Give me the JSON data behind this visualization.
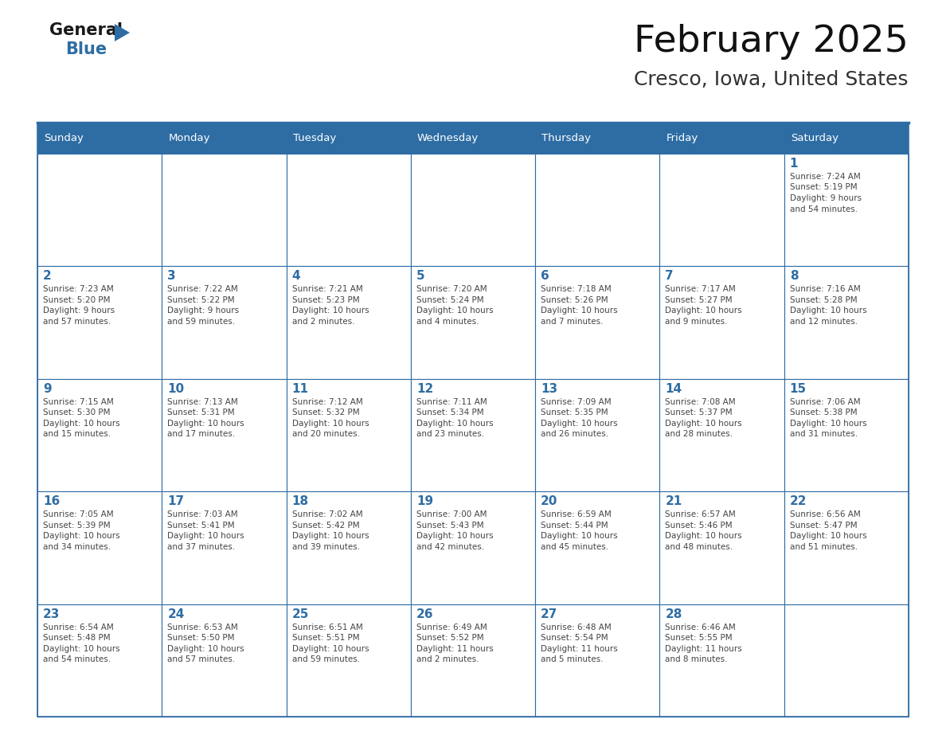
{
  "title": "February 2025",
  "subtitle": "Cresco, Iowa, United States",
  "header_bg": "#2E6DA4",
  "header_text": "#FFFFFF",
  "cell_bg": "#FFFFFF",
  "border_color": "#2E6DA4",
  "day_number_color": "#2E6DA4",
  "info_text_color": "#444444",
  "days_of_week": [
    "Sunday",
    "Monday",
    "Tuesday",
    "Wednesday",
    "Thursday",
    "Friday",
    "Saturday"
  ],
  "calendar": [
    [
      null,
      null,
      null,
      null,
      null,
      null,
      {
        "day": "1",
        "sunrise": "7:24 AM",
        "sunset": "5:19 PM",
        "daylight1": "9 hours",
        "daylight2": "and 54 minutes."
      }
    ],
    [
      {
        "day": "2",
        "sunrise": "7:23 AM",
        "sunset": "5:20 PM",
        "daylight1": "9 hours",
        "daylight2": "and 57 minutes."
      },
      {
        "day": "3",
        "sunrise": "7:22 AM",
        "sunset": "5:22 PM",
        "daylight1": "9 hours",
        "daylight2": "and 59 minutes."
      },
      {
        "day": "4",
        "sunrise": "7:21 AM",
        "sunset": "5:23 PM",
        "daylight1": "10 hours",
        "daylight2": "and 2 minutes."
      },
      {
        "day": "5",
        "sunrise": "7:20 AM",
        "sunset": "5:24 PM",
        "daylight1": "10 hours",
        "daylight2": "and 4 minutes."
      },
      {
        "day": "6",
        "sunrise": "7:18 AM",
        "sunset": "5:26 PM",
        "daylight1": "10 hours",
        "daylight2": "and 7 minutes."
      },
      {
        "day": "7",
        "sunrise": "7:17 AM",
        "sunset": "5:27 PM",
        "daylight1": "10 hours",
        "daylight2": "and 9 minutes."
      },
      {
        "day": "8",
        "sunrise": "7:16 AM",
        "sunset": "5:28 PM",
        "daylight1": "10 hours",
        "daylight2": "and 12 minutes."
      }
    ],
    [
      {
        "day": "9",
        "sunrise": "7:15 AM",
        "sunset": "5:30 PM",
        "daylight1": "10 hours",
        "daylight2": "and 15 minutes."
      },
      {
        "day": "10",
        "sunrise": "7:13 AM",
        "sunset": "5:31 PM",
        "daylight1": "10 hours",
        "daylight2": "and 17 minutes."
      },
      {
        "day": "11",
        "sunrise": "7:12 AM",
        "sunset": "5:32 PM",
        "daylight1": "10 hours",
        "daylight2": "and 20 minutes."
      },
      {
        "day": "12",
        "sunrise": "7:11 AM",
        "sunset": "5:34 PM",
        "daylight1": "10 hours",
        "daylight2": "and 23 minutes."
      },
      {
        "day": "13",
        "sunrise": "7:09 AM",
        "sunset": "5:35 PM",
        "daylight1": "10 hours",
        "daylight2": "and 26 minutes."
      },
      {
        "day": "14",
        "sunrise": "7:08 AM",
        "sunset": "5:37 PM",
        "daylight1": "10 hours",
        "daylight2": "and 28 minutes."
      },
      {
        "day": "15",
        "sunrise": "7:06 AM",
        "sunset": "5:38 PM",
        "daylight1": "10 hours",
        "daylight2": "and 31 minutes."
      }
    ],
    [
      {
        "day": "16",
        "sunrise": "7:05 AM",
        "sunset": "5:39 PM",
        "daylight1": "10 hours",
        "daylight2": "and 34 minutes."
      },
      {
        "day": "17",
        "sunrise": "7:03 AM",
        "sunset": "5:41 PM",
        "daylight1": "10 hours",
        "daylight2": "and 37 minutes."
      },
      {
        "day": "18",
        "sunrise": "7:02 AM",
        "sunset": "5:42 PM",
        "daylight1": "10 hours",
        "daylight2": "and 39 minutes."
      },
      {
        "day": "19",
        "sunrise": "7:00 AM",
        "sunset": "5:43 PM",
        "daylight1": "10 hours",
        "daylight2": "and 42 minutes."
      },
      {
        "day": "20",
        "sunrise": "6:59 AM",
        "sunset": "5:44 PM",
        "daylight1": "10 hours",
        "daylight2": "and 45 minutes."
      },
      {
        "day": "21",
        "sunrise": "6:57 AM",
        "sunset": "5:46 PM",
        "daylight1": "10 hours",
        "daylight2": "and 48 minutes."
      },
      {
        "day": "22",
        "sunrise": "6:56 AM",
        "sunset": "5:47 PM",
        "daylight1": "10 hours",
        "daylight2": "and 51 minutes."
      }
    ],
    [
      {
        "day": "23",
        "sunrise": "6:54 AM",
        "sunset": "5:48 PM",
        "daylight1": "10 hours",
        "daylight2": "and 54 minutes."
      },
      {
        "day": "24",
        "sunrise": "6:53 AM",
        "sunset": "5:50 PM",
        "daylight1": "10 hours",
        "daylight2": "and 57 minutes."
      },
      {
        "day": "25",
        "sunrise": "6:51 AM",
        "sunset": "5:51 PM",
        "daylight1": "10 hours",
        "daylight2": "and 59 minutes."
      },
      {
        "day": "26",
        "sunrise": "6:49 AM",
        "sunset": "5:52 PM",
        "daylight1": "11 hours",
        "daylight2": "and 2 minutes."
      },
      {
        "day": "27",
        "sunrise": "6:48 AM",
        "sunset": "5:54 PM",
        "daylight1": "11 hours",
        "daylight2": "and 5 minutes."
      },
      {
        "day": "28",
        "sunrise": "6:46 AM",
        "sunset": "5:55 PM",
        "daylight1": "11 hours",
        "daylight2": "and 8 minutes."
      },
      null
    ]
  ],
  "fig_width": 11.88,
  "fig_height": 9.18,
  "dpi": 100
}
